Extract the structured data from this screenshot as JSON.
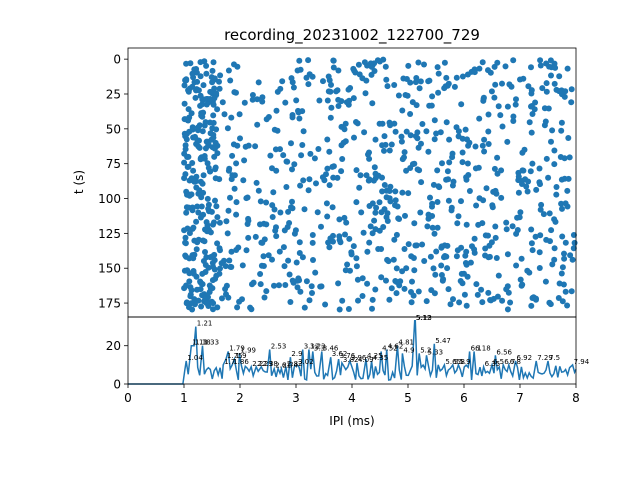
{
  "chart_data": [
    {
      "type": "scatter",
      "title": "recording_20231002_122700_729",
      "xlabel": "",
      "ylabel": "t (s)",
      "ylim": [
        185,
        -8
      ],
      "y_inverted": true,
      "yticks": [
        "0",
        "25",
        "50",
        "75",
        "100",
        "125",
        "150",
        "175"
      ],
      "xlim": [
        0,
        8
      ],
      "point_color": "#1f77b4",
      "generator": {
        "count": 1050,
        "x_range": [
          1.0,
          8.0
        ],
        "y_range": [
          0,
          180
        ],
        "seed": 729
      }
    },
    {
      "type": "line",
      "xlabel": "IPI (ms)",
      "ylabel": "",
      "xlim": [
        0,
        8
      ],
      "ylim": [
        0,
        35
      ],
      "xticks": [
        "0",
        "1",
        "2",
        "3",
        "4",
        "5",
        "6",
        "7",
        "8"
      ],
      "yticks": [
        "0",
        "20"
      ],
      "line_color": "#1f77b4",
      "peaks": [
        {
          "x": 1.04,
          "y": 12
        },
        {
          "x": 1.13,
          "y": 20
        },
        {
          "x": 1.18,
          "y": 20
        },
        {
          "x": 1.21,
          "y": 30
        },
        {
          "x": 1.33,
          "y": 20
        },
        {
          "x": 1.7,
          "y": 10
        },
        {
          "x": 1.75,
          "y": 13
        },
        {
          "x": 1.79,
          "y": 17
        },
        {
          "x": 1.86,
          "y": 10
        },
        {
          "x": 1.9,
          "y": 13
        },
        {
          "x": 1.99,
          "y": 16
        },
        {
          "x": 2.2,
          "y": 9
        },
        {
          "x": 2.29,
          "y": 9
        },
        {
          "x": 2.38,
          "y": 9
        },
        {
          "x": 2.53,
          "y": 18
        },
        {
          "x": 2.61,
          "y": 8
        },
        {
          "x": 2.74,
          "y": 8
        },
        {
          "x": 2.82,
          "y": 9
        },
        {
          "x": 2.9,
          "y": 14
        },
        {
          "x": 3.02,
          "y": 10
        },
        {
          "x": 3.12,
          "y": 18
        },
        {
          "x": 3.23,
          "y": 18
        },
        {
          "x": 3.3,
          "y": 17
        },
        {
          "x": 3.46,
          "y": 17
        },
        {
          "x": 3.62,
          "y": 14
        },
        {
          "x": 3.76,
          "y": 13
        },
        {
          "x": 3.82,
          "y": 11
        },
        {
          "x": 3.96,
          "y": 12
        },
        {
          "x": 4.09,
          "y": 11
        },
        {
          "x": 4.25,
          "y": 13
        },
        {
          "x": 4.35,
          "y": 12
        },
        {
          "x": 4.52,
          "y": 17
        },
        {
          "x": 4.62,
          "y": 18
        },
        {
          "x": 4.81,
          "y": 20
        },
        {
          "x": 4.9,
          "y": 16
        },
        {
          "x": 5.12,
          "y": 33
        },
        {
          "x": 5.13,
          "y": 33
        },
        {
          "x": 5.2,
          "y": 16
        },
        {
          "x": 5.33,
          "y": 15
        },
        {
          "x": 5.47,
          "y": 21
        },
        {
          "x": 5.65,
          "y": 10
        },
        {
          "x": 5.8,
          "y": 10
        },
        {
          "x": 5.9,
          "y": 10
        },
        {
          "x": 6.1,
          "y": 17
        },
        {
          "x": 6.18,
          "y": 17
        },
        {
          "x": 6.35,
          "y": 9
        },
        {
          "x": 6.5,
          "y": 10
        },
        {
          "x": 6.56,
          "y": 15
        },
        {
          "x": 6.7,
          "y": 10
        },
        {
          "x": 6.8,
          "y": 10
        },
        {
          "x": 6.92,
          "y": 12
        },
        {
          "x": 7.29,
          "y": 12
        },
        {
          "x": 7.5,
          "y": 12
        },
        {
          "x": 7.94,
          "y": 10
        }
      ],
      "peak_labels": [
        "1.04",
        "1.13",
        "1.18",
        "1.21",
        "1.33",
        "1.7",
        "1.75",
        "1.79",
        "1.86",
        "1.9",
        "1.99",
        "2.2",
        "2.29",
        "2.38",
        "2.53",
        "2.61",
        "2.74",
        "2.82",
        "2.9",
        "3.02",
        "3.12",
        "3.23",
        "3.3",
        "3.46",
        "3.62",
        "3.76",
        "3.82",
        "3.96",
        "4.09",
        "4.25",
        "4.35",
        "4.52",
        "4.62",
        "4.81",
        "4.9",
        "5.12",
        "5.13",
        "5.2",
        "5.33",
        "5.47",
        "5.65",
        "5.8",
        "5.9",
        "6.1",
        "6.18",
        "6.35",
        "6.5",
        "6.56",
        "6.7",
        "6.8",
        "6.92",
        "7.29",
        "7.5",
        "7.94"
      ]
    }
  ]
}
